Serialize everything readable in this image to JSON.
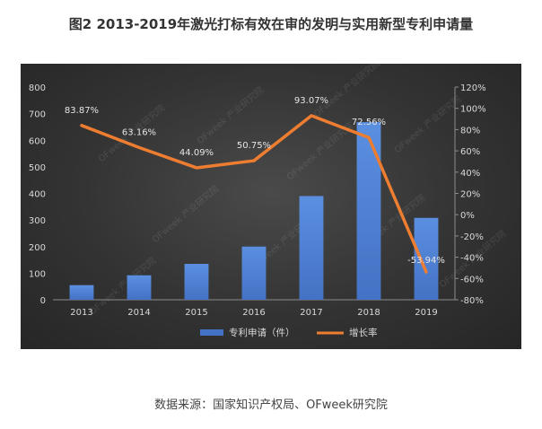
{
  "title": "图2  2013-2019年激光打标有效在审的发明与实用新型专利申请量",
  "source": "数据来源：国家知识产权局、OFweek研究院",
  "watermark": "OFweek 产业研究院",
  "colors": {
    "bar": "#4472c4",
    "line": "#ed7d31",
    "panel": "#333333"
  },
  "chart_data": {
    "type": "bar",
    "categories": [
      "2013",
      "2014",
      "2015",
      "2016",
      "2017",
      "2018",
      "2019"
    ],
    "series": [
      {
        "name": "专利申请（件）",
        "type": "bar",
        "axis": "left",
        "values": [
          55,
          92,
          135,
          200,
          390,
          668,
          308
        ]
      },
      {
        "name": "增长率",
        "type": "line",
        "axis": "right",
        "values": [
          83.87,
          63.16,
          44.09,
          50.75,
          93.07,
          72.56,
          -53.94
        ],
        "labels": [
          "83.87%",
          "63.16%",
          "44.09%",
          "50.75%",
          "93.07%",
          "72.56%",
          "-53.94%"
        ]
      }
    ],
    "y_left": {
      "min": 0,
      "max": 800,
      "step": 100,
      "ticks": [
        "0",
        "100",
        "200",
        "300",
        "400",
        "500",
        "600",
        "700",
        "800"
      ]
    },
    "y_right": {
      "min": -80,
      "max": 120,
      "step": 20,
      "ticks": [
        "-80%",
        "-60%",
        "-40%",
        "-20%",
        "0%",
        "20%",
        "40%",
        "60%",
        "80%",
        "100%",
        "120%"
      ]
    },
    "grid": false,
    "legend_position": "bottom"
  }
}
